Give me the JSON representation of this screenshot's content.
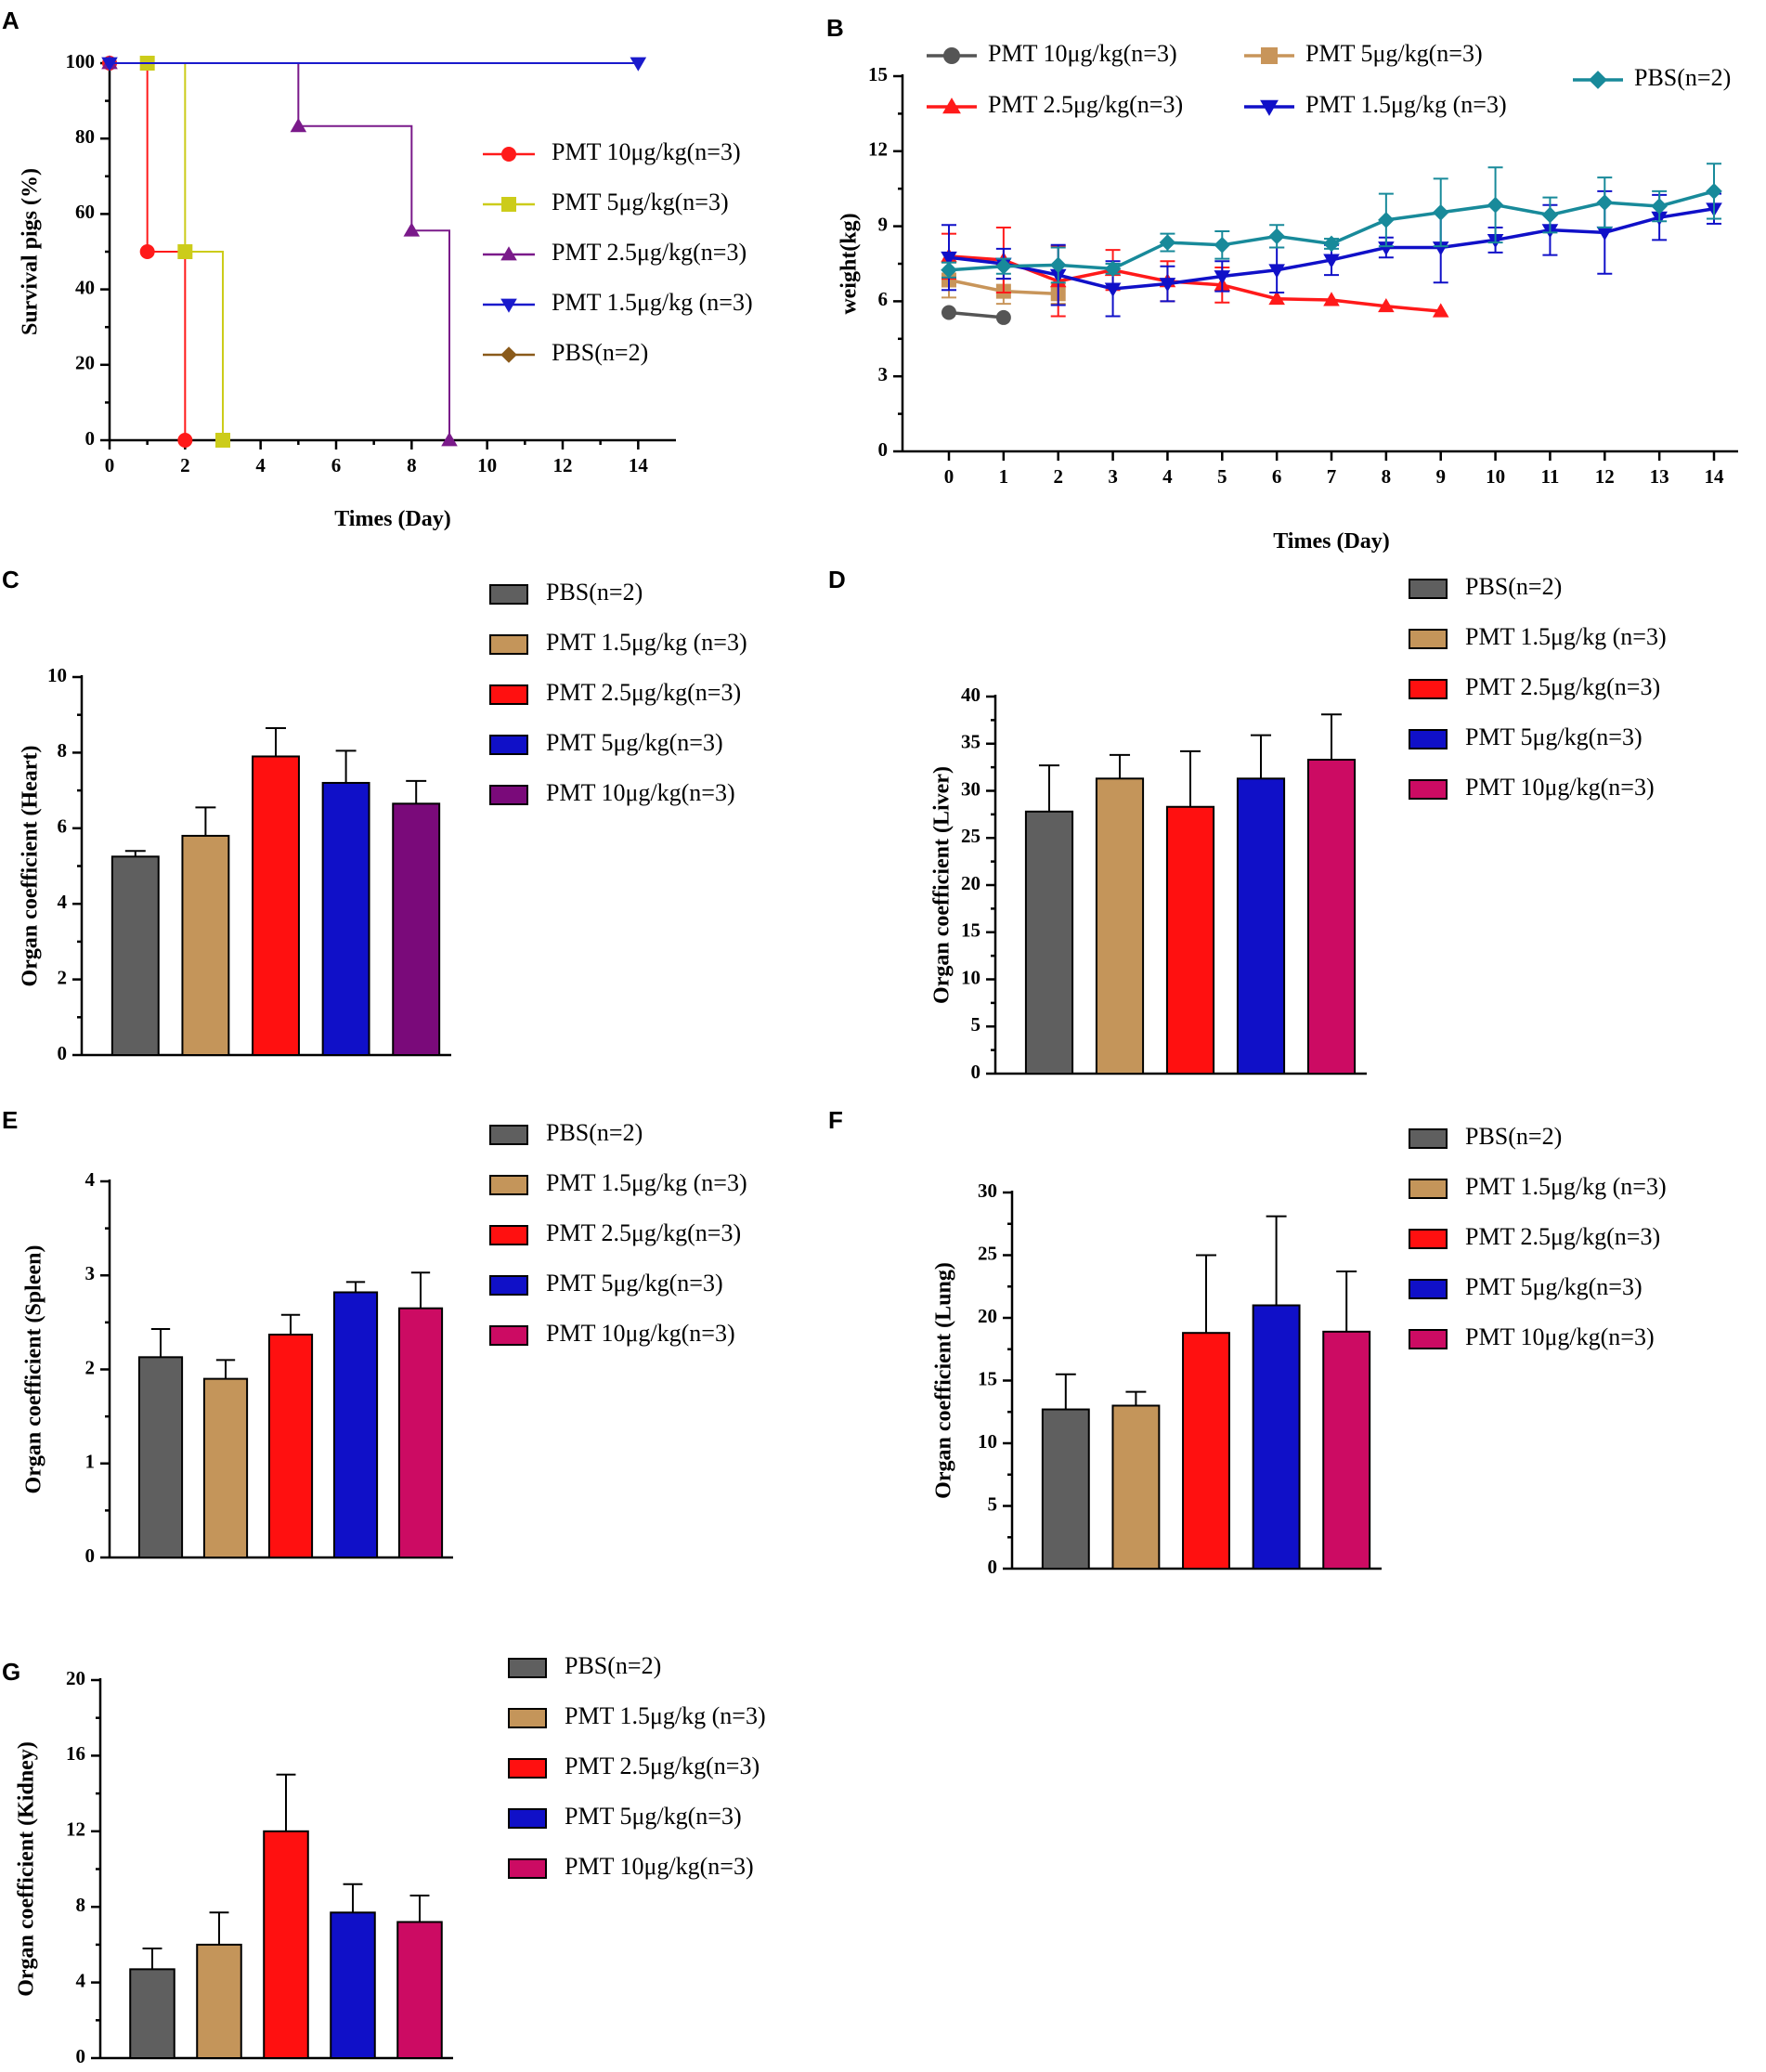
{
  "colors": {
    "pbs_bar": "#5f5f5f",
    "pmt15_bar": "#c4955a",
    "pmt25_bar": "#ff1010",
    "pmt5_bar": "#1010c8",
    "pmt10_bar_heart": "#7a0a7a",
    "pmt10_bar": "#cc0b63",
    "survival_pmt10": "#ff1a1a",
    "survival_pmt5": "#cccc1a",
    "survival_pmt25": "#7a1a8a",
    "survival_pmt15": "#1a1acc",
    "survival_pbs": "#8a5a1a",
    "weight_pmt10": "#555555",
    "weight_pmt5": "#c8955a",
    "weight_pmt25": "#ff1a1a",
    "weight_pmt15": "#1010c8",
    "weight_pbs": "#188a9a"
  },
  "chart_data": [
    {
      "panel": "A",
      "type": "line",
      "step": true,
      "xlabel": "Times (Day)",
      "ylabel": "Survival pigs (%)",
      "xlim": [
        0,
        15
      ],
      "ylim": [
        0,
        100
      ],
      "xticks": [
        0,
        2,
        4,
        6,
        8,
        10,
        12,
        14
      ],
      "yticks": [
        0,
        20,
        40,
        60,
        80,
        100
      ],
      "legend_position": "right",
      "series": [
        {
          "name": "PMT 10μg/kg(n=3)",
          "color": "survival_pmt10",
          "marker": "circle",
          "x": [
            0,
            1,
            2
          ],
          "y": [
            100,
            50,
            0
          ]
        },
        {
          "name": "PMT 5μg/kg(n=3)",
          "color": "survival_pmt5",
          "marker": "square",
          "x": [
            1,
            2,
            3
          ],
          "y": [
            100,
            50,
            0
          ]
        },
        {
          "name": "PMT 2.5μg/kg(n=3)",
          "color": "survival_pmt25",
          "marker": "triangle",
          "x": [
            0,
            5,
            8,
            9
          ],
          "y": [
            100,
            83.3,
            55.6,
            0
          ]
        },
        {
          "name": "PMT 1.5μg/kg (n=3)",
          "color": "survival_pmt15",
          "marker": "triangle-down",
          "x": [
            0,
            14
          ],
          "y": [
            100,
            100
          ]
        },
        {
          "name": "PBS(n=2)",
          "color": "survival_pbs",
          "marker": "diamond",
          "x": [],
          "y": []
        }
      ]
    },
    {
      "panel": "B",
      "type": "line",
      "xlabel": "Times (Day)",
      "ylabel": "weight(kg)",
      "xlim": [
        0,
        14
      ],
      "ylim": [
        0,
        15
      ],
      "xticks": [
        0,
        1,
        2,
        3,
        4,
        5,
        6,
        7,
        8,
        9,
        10,
        11,
        12,
        13,
        14
      ],
      "yticks": [
        0,
        3,
        6,
        9,
        12,
        15
      ],
      "legend_position": "top",
      "series": [
        {
          "name": "PMT 10μg/kg(n=3)",
          "color": "weight_pmt10",
          "marker": "circle",
          "x": [
            0,
            1
          ],
          "y": [
            5.55,
            5.35
          ],
          "err": [
            0,
            0
          ]
        },
        {
          "name": "PMT 5μg/kg(n=3)",
          "color": "weight_pmt5",
          "marker": "square",
          "x": [
            0,
            1,
            2
          ],
          "y": [
            6.85,
            6.4,
            6.3
          ],
          "err": [
            0.7,
            0.5,
            0.4
          ]
        },
        {
          "name": "PMT 2.5μg/kg(n=3)",
          "color": "weight_pmt25",
          "marker": "triangle",
          "x": [
            0,
            1,
            2,
            3,
            4,
            5,
            6,
            7,
            8,
            9
          ],
          "y": [
            7.8,
            7.65,
            6.8,
            7.25,
            6.8,
            6.65,
            6.1,
            6.05,
            5.8,
            5.6
          ],
          "err": [
            0.9,
            1.3,
            1.4,
            0.8,
            0.8,
            0.7,
            0,
            0,
            0,
            0
          ]
        },
        {
          "name": "PMT 1.5μg/kg (n=3)",
          "color": "weight_pmt15",
          "marker": "triangle-down",
          "x": [
            0,
            1,
            2,
            3,
            4,
            5,
            6,
            7,
            8,
            9,
            10,
            11,
            12,
            13,
            14
          ],
          "y": [
            7.75,
            7.5,
            7.05,
            6.5,
            6.7,
            7.0,
            7.25,
            7.65,
            8.15,
            8.15,
            8.45,
            8.85,
            8.75,
            9.35,
            9.7
          ],
          "err": [
            1.3,
            0.6,
            1.2,
            1.1,
            0.7,
            0.6,
            0.9,
            0.6,
            0.4,
            1.4,
            0.5,
            1.0,
            1.65,
            0.9,
            0.6
          ]
        },
        {
          "name": "PBS(n=2)",
          "color": "weight_pbs",
          "marker": "diamond",
          "x": [
            0,
            1,
            2,
            3,
            4,
            5,
            6,
            7,
            8,
            9,
            10,
            11,
            12,
            13,
            14
          ],
          "y": [
            7.25,
            7.4,
            7.45,
            7.3,
            8.35,
            8.25,
            8.6,
            8.3,
            9.25,
            9.55,
            9.85,
            9.45,
            9.95,
            9.8,
            10.4
          ],
          "err": [
            0.3,
            0.3,
            0.7,
            0.2,
            0.35,
            0.55,
            0.45,
            0.2,
            1.05,
            1.35,
            1.5,
            0.7,
            1.0,
            0.6,
            1.1
          ]
        }
      ]
    },
    {
      "panel": "C",
      "type": "bar",
      "ylabel": "Organ coefficient (Heart)",
      "ylim": [
        0,
        10
      ],
      "yticks": [
        0,
        2,
        4,
        6,
        8,
        10
      ],
      "categories": [
        "PBS(n=2)",
        "PMT 1.5μg/kg (n=3)",
        "PMT 2.5μg/kg(n=3)",
        "PMT 5μg/kg(n=3)",
        "PMT 10μg/kg(n=3)"
      ],
      "values": [
        5.25,
        5.8,
        7.9,
        7.2,
        6.65
      ],
      "errors": [
        0.15,
        0.75,
        0.75,
        0.85,
        0.6
      ],
      "bar_colors": [
        "pbs_bar",
        "pmt15_bar",
        "pmt25_bar",
        "pmt5_bar",
        "pmt10_bar_heart"
      ],
      "legend_position": "top-right"
    },
    {
      "panel": "D",
      "type": "bar",
      "ylabel": "Organ coefficient (Liver)",
      "ylim": [
        0,
        40
      ],
      "yticks": [
        0,
        5,
        10,
        15,
        20,
        25,
        30,
        35,
        40
      ],
      "categories": [
        "PBS(n=2)",
        "PMT 1.5μg/kg (n=3)",
        "PMT 2.5μg/kg(n=3)",
        "PMT 5μg/kg(n=3)",
        "PMT 10μg/kg(n=3)"
      ],
      "values": [
        27.8,
        31.3,
        28.3,
        31.3,
        33.3
      ],
      "errors": [
        4.9,
        2.5,
        5.9,
        4.6,
        4.8
      ],
      "bar_colors": [
        "pbs_bar",
        "pmt15_bar",
        "pmt25_bar",
        "pmt5_bar",
        "pmt10_bar"
      ],
      "legend_position": "top-right"
    },
    {
      "panel": "E",
      "type": "bar",
      "ylabel": "Organ coefficient (Spleen)",
      "ylim": [
        0,
        4
      ],
      "yticks": [
        0,
        1,
        2,
        3,
        4
      ],
      "categories": [
        "PBS(n=2)",
        "PMT 1.5μg/kg (n=3)",
        "PMT 2.5μg/kg(n=3)",
        "PMT 5μg/kg(n=3)",
        "PMT 10μg/kg(n=3)"
      ],
      "values": [
        2.13,
        1.9,
        2.37,
        2.82,
        2.65
      ],
      "errors": [
        0.3,
        0.2,
        0.21,
        0.11,
        0.38
      ],
      "bar_colors": [
        "pbs_bar",
        "pmt15_bar",
        "pmt25_bar",
        "pmt5_bar",
        "pmt10_bar"
      ],
      "legend_position": "top-right"
    },
    {
      "panel": "F",
      "type": "bar",
      "ylabel": "Organ coefficient (Lung)",
      "ylim": [
        0,
        30
      ],
      "yticks": [
        0,
        5,
        10,
        15,
        20,
        25,
        30
      ],
      "categories": [
        "PBS(n=2)",
        "PMT 1.5μg/kg (n=3)",
        "PMT 2.5μg/kg(n=3)",
        "PMT 5μg/kg(n=3)",
        "PMT 10μg/kg(n=3)"
      ],
      "values": [
        12.7,
        13.0,
        18.8,
        21.0,
        18.9
      ],
      "errors": [
        2.8,
        1.1,
        6.2,
        7.1,
        4.8
      ],
      "bar_colors": [
        "pbs_bar",
        "pmt15_bar",
        "pmt25_bar",
        "pmt5_bar",
        "pmt10_bar"
      ],
      "legend_position": "top-right"
    },
    {
      "panel": "G",
      "type": "bar",
      "ylabel": "Organ coefficient (Kidney)",
      "ylim": [
        0,
        20
      ],
      "yticks": [
        0,
        4,
        8,
        12,
        16,
        20
      ],
      "categories": [
        "PBS(n=2)",
        "PMT 1.5μg/kg (n=3)",
        "PMT 2.5μg/kg(n=3)",
        "PMT 5μg/kg(n=3)",
        "PMT 10μg/kg(n=3)"
      ],
      "values": [
        4.7,
        6.0,
        12.0,
        7.7,
        7.2
      ],
      "errors": [
        1.1,
        1.7,
        3.0,
        1.5,
        1.4
      ],
      "bar_colors": [
        "pbs_bar",
        "pmt15_bar",
        "pmt25_bar",
        "pmt5_bar",
        "pmt10_bar"
      ],
      "legend_position": "top-right"
    }
  ]
}
